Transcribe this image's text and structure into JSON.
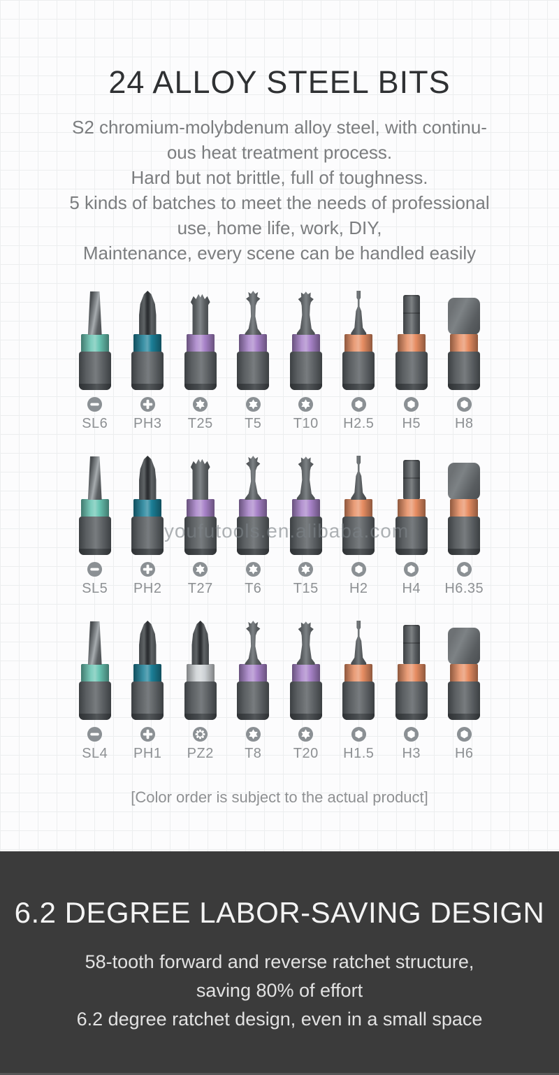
{
  "colors": {
    "teal": "#68c4b2",
    "petrol": "#1b7f97",
    "purple": "#a883c9",
    "orange": "#e78e63",
    "silver": "#cdd1d4",
    "dark_bg": "#3b3b3b",
    "icon_gray": "#8b9094"
  },
  "watermark": "youfutools.en.alibaba.com",
  "bits_section": {
    "title": "24 ALLOY STEEL BITS",
    "description_lines": [
      "S2 chromium-molybdenum alloy steel, with continu-",
      "ous heat treatment process.",
      "Hard but not brittle, full of toughness.",
      "5 kinds of batches to meet the needs of professional",
      "use, home life, work, DIY,",
      "Maintenance, every scene can be handled easily"
    ],
    "note": "[Color order is subject to the actual product]",
    "rows": [
      [
        {
          "label": "SL6",
          "tip": "slot",
          "band": "teal",
          "icon": "slot"
        },
        {
          "label": "PH3",
          "tip": "phillips",
          "band": "petrol",
          "icon": "phillips"
        },
        {
          "label": "T25",
          "tip": "torx-l",
          "band": "purple",
          "icon": "torx"
        },
        {
          "label": "T5",
          "tip": "torx-s",
          "band": "purple",
          "icon": "torx"
        },
        {
          "label": "T10",
          "tip": "torx-m",
          "band": "purple",
          "icon": "torx"
        },
        {
          "label": "H2.5",
          "tip": "hexpin",
          "band": "orange",
          "icon": "hex"
        },
        {
          "label": "H5",
          "tip": "hexcol",
          "band": "orange",
          "icon": "hex"
        },
        {
          "label": "H8",
          "tip": "block",
          "band": "orange",
          "icon": "hex"
        }
      ],
      [
        {
          "label": "SL5",
          "tip": "slot",
          "band": "teal",
          "icon": "slot"
        },
        {
          "label": "PH2",
          "tip": "phillips",
          "band": "petrol",
          "icon": "phillips"
        },
        {
          "label": "T27",
          "tip": "torx-l",
          "band": "purple",
          "icon": "torx"
        },
        {
          "label": "T6",
          "tip": "torx-s",
          "band": "purple",
          "icon": "torx"
        },
        {
          "label": "T15",
          "tip": "torx-m",
          "band": "purple",
          "icon": "torx"
        },
        {
          "label": "H2",
          "tip": "hexpin",
          "band": "orange",
          "icon": "hex"
        },
        {
          "label": "H4",
          "tip": "hexcol",
          "band": "orange",
          "icon": "hex"
        },
        {
          "label": "H6.35",
          "tip": "block",
          "band": "orange",
          "icon": "hex"
        }
      ],
      [
        {
          "label": "SL4",
          "tip": "slot",
          "band": "teal",
          "icon": "slot"
        },
        {
          "label": "PH1",
          "tip": "phillips",
          "band": "petrol",
          "icon": "phillips"
        },
        {
          "label": "PZ2",
          "tip": "phillips",
          "band": "silver",
          "icon": "pozi"
        },
        {
          "label": "T8",
          "tip": "torx-s",
          "band": "purple",
          "icon": "torx"
        },
        {
          "label": "T20",
          "tip": "torx-m",
          "band": "purple",
          "icon": "torx"
        },
        {
          "label": "H1.5",
          "tip": "hexpin",
          "band": "orange",
          "icon": "hex"
        },
        {
          "label": "H3",
          "tip": "hexcol",
          "band": "orange",
          "icon": "hex"
        },
        {
          "label": "H6",
          "tip": "block",
          "band": "orange",
          "icon": "hex"
        }
      ]
    ]
  },
  "ratchet_section": {
    "title": "6.2 DEGREE LABOR-SAVING DESIGN",
    "description_lines": [
      "58-tooth forward and reverse ratchet structure,",
      "saving 80% of effort",
      "6.2 degree ratchet design, even in a small space"
    ]
  }
}
